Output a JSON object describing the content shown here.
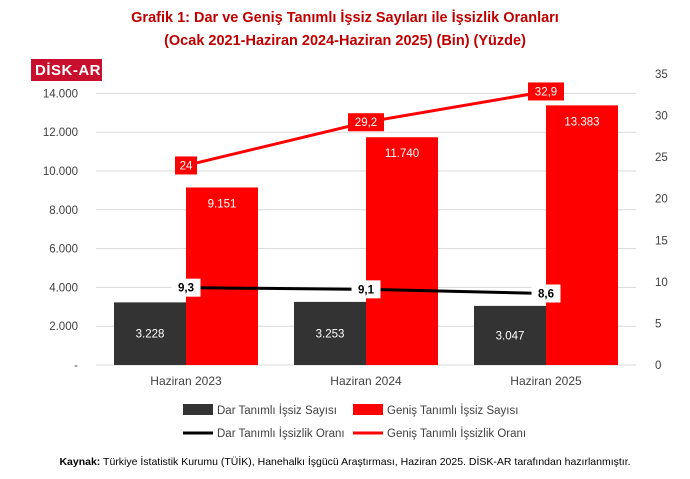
{
  "title_line1": "Grafik 1: Dar ve Geniş Tanımlı İşsiz Sayıları ile İşsizlik Oranları",
  "title_line2": "(Ocak 2021-Haziran 2024-Haziran 2025) (Bin) (Yüzde)",
  "logo": "DİSK-AR",
  "source_label": "Kaynak:",
  "source_text": "Türkiye İstatistik Kurumu (TÜİK), Hanehalkı İşgücü Araştırması, Haziran 2025. DİSK-AR tarafından hazırlanmıştır.",
  "colors": {
    "dark_bar": "#333333",
    "red": "#ff0000",
    "title": "#c00000",
    "line_black": "#000000"
  },
  "chart_data": {
    "type": "bar",
    "categories": [
      "Haziran 2023",
      "Haziran 2024",
      "Haziran 2025"
    ],
    "bar_series": [
      {
        "name": "Dar Tanımlı İşsiz Sayısı",
        "values": [
          3228,
          3253,
          3047
        ],
        "labels": [
          "3.228",
          "3.253",
          "3.047"
        ],
        "color": "#333333"
      },
      {
        "name": "Geniş Tanımlı İşsiz Sayısı",
        "values": [
          9151,
          11740,
          13383
        ],
        "labels": [
          "9.151",
          "11.740",
          "13.383"
        ],
        "color": "#ff0000"
      }
    ],
    "line_series": [
      {
        "name": "Dar Tanımlı İşsizlik Oranı",
        "values": [
          9.3,
          9.1,
          8.6
        ],
        "labels": [
          "9,3",
          "9,1",
          "8,6"
        ],
        "color": "#000000",
        "axis": "right"
      },
      {
        "name": "Geniş Tanımlı İşsizlik Oranı",
        "values": [
          24,
          29.2,
          32.9
        ],
        "labels": [
          "24",
          "29,2",
          "32,9"
        ],
        "color": "#ff0000",
        "axis": "right"
      }
    ],
    "left_axis": {
      "ylim": [
        0,
        15000
      ],
      "ticks": [
        0,
        2000,
        4000,
        6000,
        8000,
        10000,
        12000,
        14000
      ],
      "tick_labels": [
        "-",
        "2.000",
        "4.000",
        "6.000",
        "8.000",
        "10.000",
        "12.000",
        "14.000"
      ]
    },
    "right_axis": {
      "ylim": [
        0,
        35
      ],
      "ticks": [
        0,
        5,
        10,
        15,
        20,
        25,
        30,
        35
      ],
      "tick_labels": [
        "0",
        "5",
        "10",
        "15",
        "20",
        "25",
        "30",
        "35"
      ]
    },
    "grid": true,
    "legend_position": "bottom"
  }
}
